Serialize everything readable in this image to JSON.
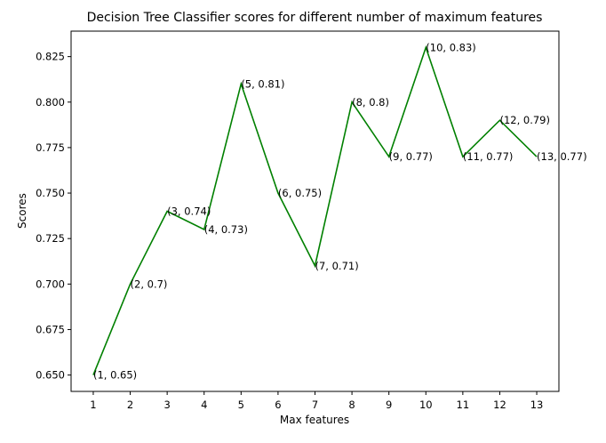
{
  "chart_data": {
    "type": "line",
    "title": "Decision Tree Classifier scores for different number of maximum features",
    "xlabel": "Max features",
    "ylabel": "Scores",
    "x": [
      1,
      2,
      3,
      4,
      5,
      6,
      7,
      8,
      9,
      10,
      11,
      12,
      13
    ],
    "series": [
      {
        "values": [
          0.65,
          0.7,
          0.74,
          0.73,
          0.81,
          0.75,
          0.71,
          0.8,
          0.77,
          0.83,
          0.77,
          0.79,
          0.77
        ],
        "color": "#008000"
      }
    ],
    "annotations": [
      "(1, 0.65)",
      "(2, 0.7)",
      "(3, 0.74)",
      "(4, 0.73)",
      "(5, 0.81)",
      "(6, 0.75)",
      "(7, 0.71)",
      "(8, 0.8)",
      "(9, 0.77)",
      "(10, 0.83)",
      "(11, 0.77)",
      "(12, 0.79)",
      "(13, 0.77)"
    ],
    "xticks": [
      1,
      2,
      3,
      4,
      5,
      6,
      7,
      8,
      9,
      10,
      11,
      12,
      13
    ],
    "yticks": [
      "0.650",
      "0.675",
      "0.700",
      "0.725",
      "0.750",
      "0.775",
      "0.800",
      "0.825"
    ],
    "xlim": [
      0.4,
      13.6
    ],
    "ylim": [
      0.641,
      0.839
    ],
    "grid": false,
    "legend": "none"
  }
}
